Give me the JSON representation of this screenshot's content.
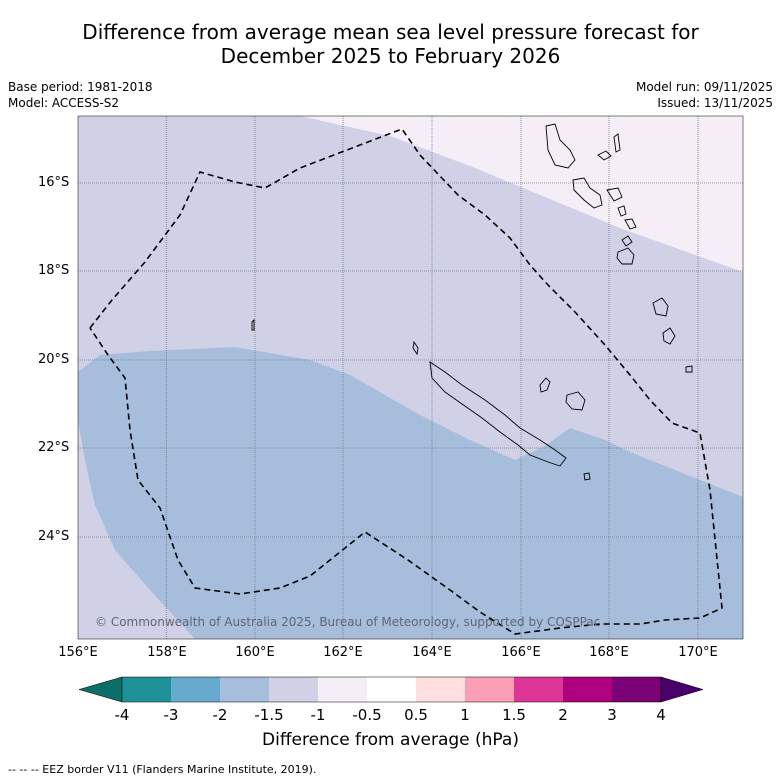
{
  "title_line1": "Difference from average mean sea level pressure forecast for",
  "title_line2": "December 2025 to February 2026",
  "base_period": "Base period: 1981-2018",
  "model": "Model: ACCESS-S2",
  "model_run": "Model run: 09/11/2025",
  "issued": "Issued: 13/11/2025",
  "copyright": "© Commonwealth of Australia 2025, Bureau of Meteorology, supported by COSPPac",
  "lat_labels": [
    "16°S",
    "18°S",
    "20°S",
    "22°S",
    "24°S"
  ],
  "lon_labels": [
    "156°E",
    "158°E",
    "160°E",
    "162°E",
    "164°E",
    "166°E",
    "168°E",
    "170°E"
  ],
  "colorbar": {
    "title": "Difference from average (hPa)",
    "ticks": [
      "-4",
      "-3",
      "-2",
      "-1.5",
      "-1",
      "-0.5",
      "0.5",
      "1",
      "1.5",
      "2",
      "3",
      "4"
    ],
    "colors": [
      "#0b6e68",
      "#1e9198",
      "#67a9cf",
      "#a6bddb",
      "#d0d1e6",
      "#f5eef6",
      "#ffffff",
      "#fde0dd",
      "#fa9fb5",
      "#dd3497",
      "#ae017e",
      "#7a0177",
      "#49006a"
    ]
  },
  "footnote": "-- -- -- EEZ border V11 (Flanders Marine Institute, 2019).",
  "map_data": {
    "lon_range": [
      156,
      171
    ],
    "lat_range": [
      -14.5,
      -26.3
    ],
    "fills": {
      "minus_1_to_minus_0_5": "#f5eef6",
      "minus_1_5_to_minus_1": "#d0d1e6",
      "minus_2_to_minus_1_5": "#a6bddb"
    }
  }
}
